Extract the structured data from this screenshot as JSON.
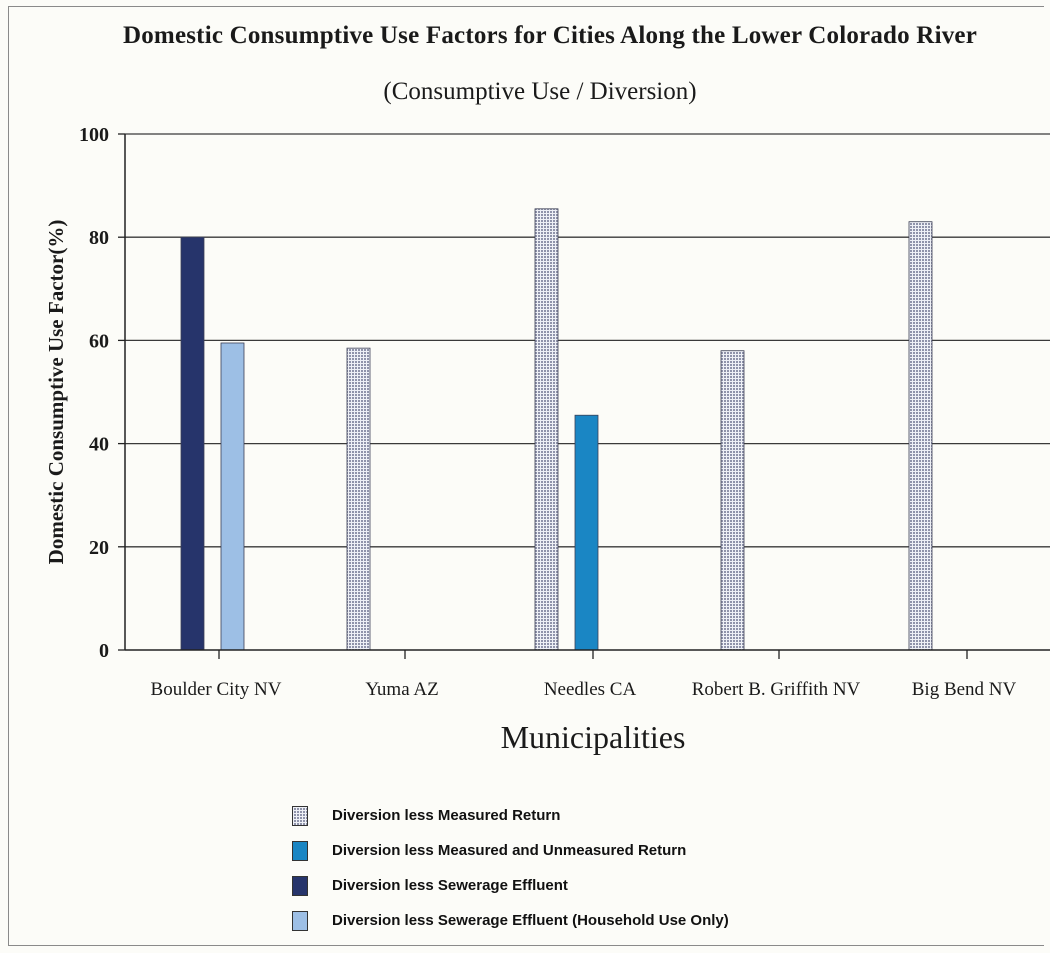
{
  "chart_data": {
    "type": "bar",
    "title": "Domestic Consumptive Use Factors for Cities Along the Lower Colorado River",
    "subtitle": "(Consumptive Use / Diversion)",
    "xlabel": "Municipalities",
    "ylabel": "Domestic Consumptive Use Factor(%)",
    "ylim": [
      0,
      100
    ],
    "yticks": [
      "0",
      "20",
      "40",
      "60",
      "80",
      "100"
    ],
    "categories": [
      "Boulder City NV",
      "Yuma AZ",
      "Needles CA",
      "Robert B. Griffith NV",
      "Big Bend NV"
    ],
    "series": [
      {
        "name": "Diversion less Measured Return",
        "values": [
          null,
          58.5,
          85.5,
          58,
          83
        ],
        "color": "#8f93aa",
        "pattern": "grid"
      },
      {
        "name": "Diversion less Measured and Unmeasured Return",
        "values": [
          null,
          null,
          45.5,
          null,
          null
        ],
        "color": "#1a86c4"
      },
      {
        "name": "Diversion less Sewerage Effluent",
        "values": [
          80,
          null,
          null,
          null,
          null
        ],
        "color": "#26346b"
      },
      {
        "name": "Diversion less Sewerage Effluent (Household Use Only)",
        "values": [
          59.5,
          null,
          null,
          null,
          null
        ],
        "color": "#9dbfe5"
      }
    ],
    "grid": true,
    "legend": "bottom"
  }
}
